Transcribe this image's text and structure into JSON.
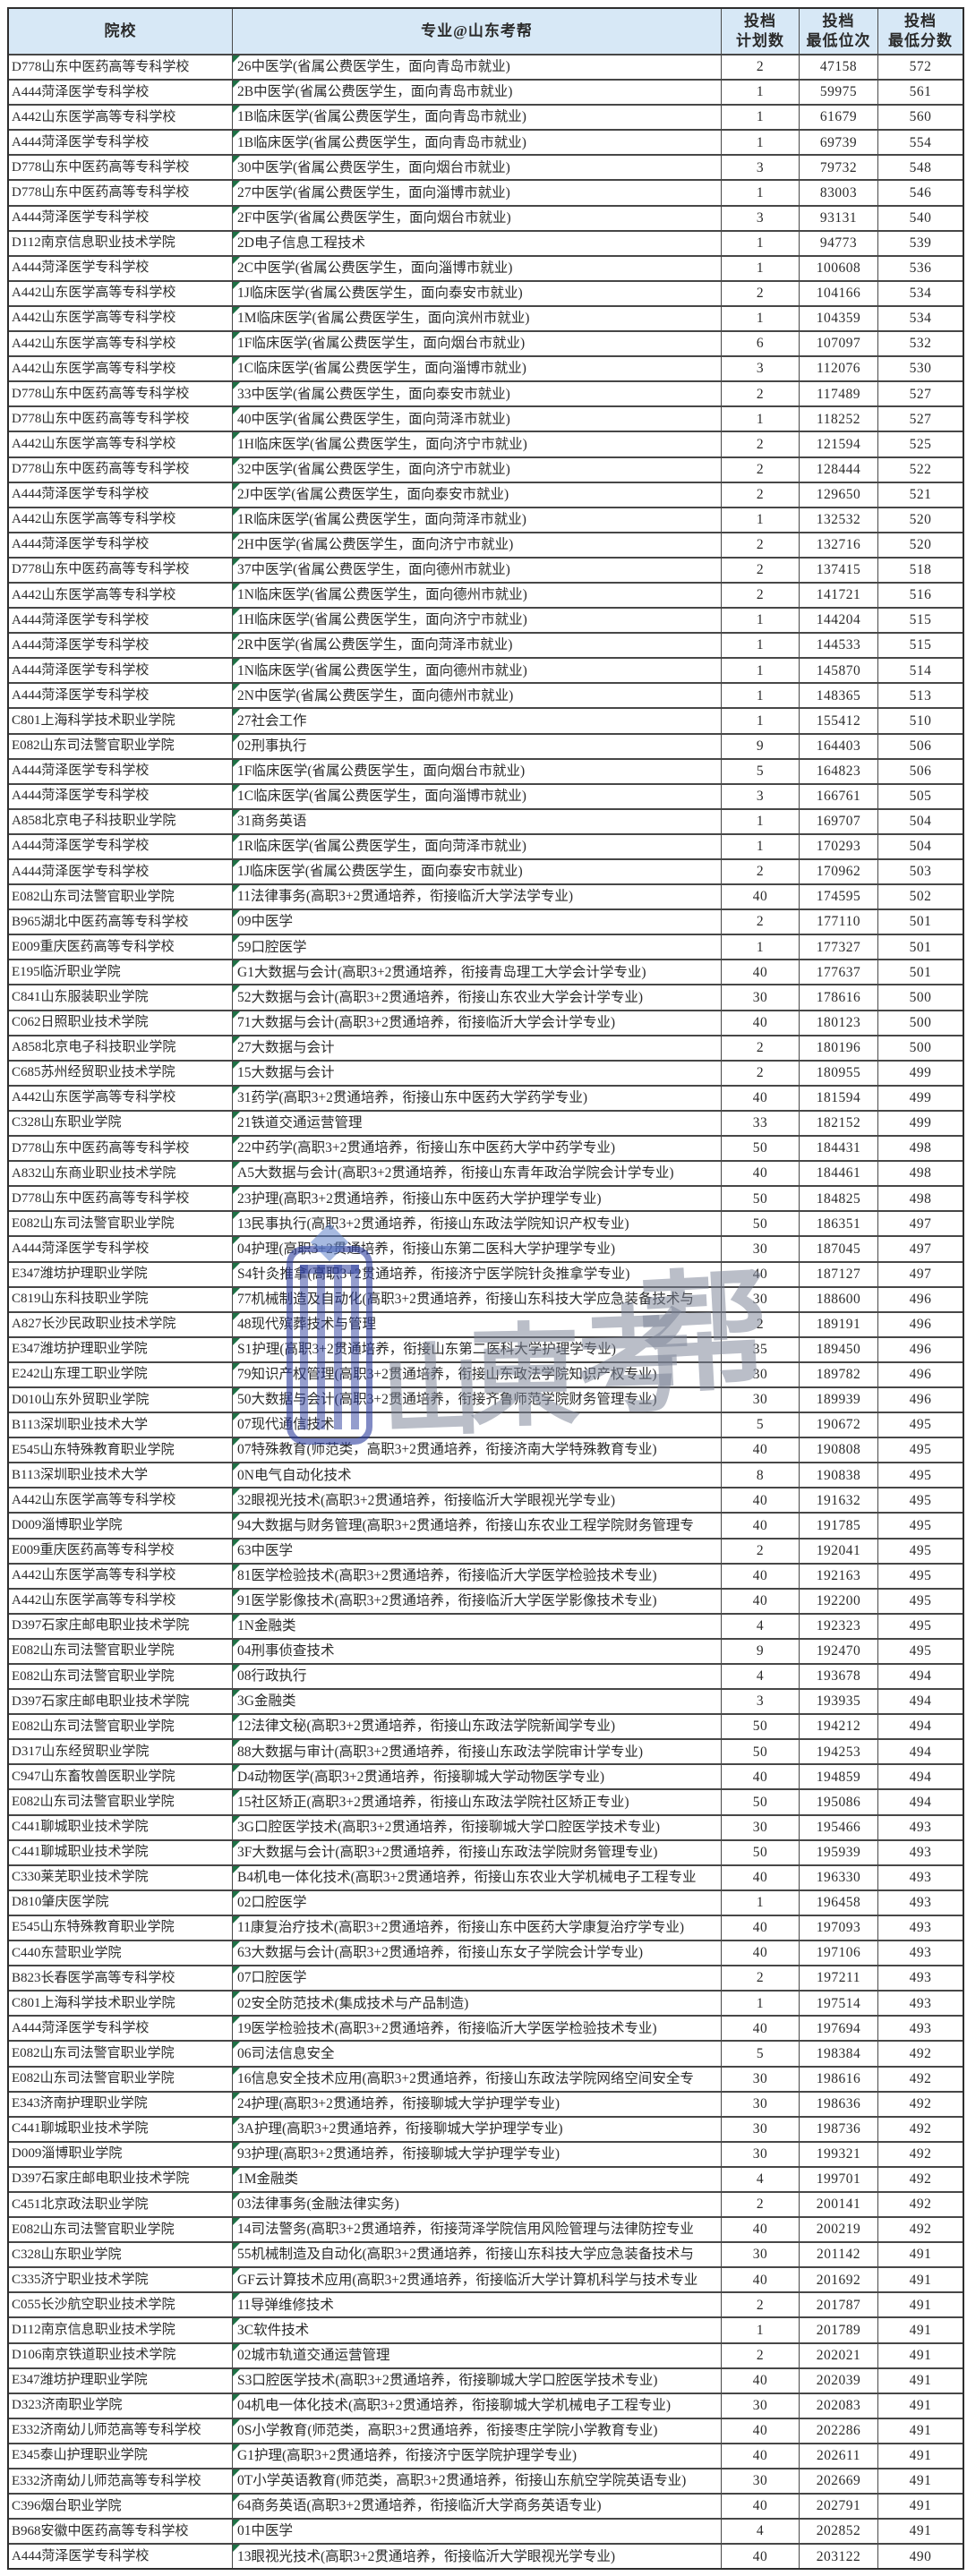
{
  "colors": {
    "header_bg": "#d7e8f6",
    "grid_line": "#474747",
    "outer_border": "#2e2e2e",
    "corner_marker_green": "#1e7145",
    "watermark_blue": "#2b3c9c",
    "watermark_gray": "#7a8396",
    "text": "#2b2b2b"
  },
  "watermark": {
    "brand_chars": [
      "山",
      "東",
      "考",
      "帮"
    ]
  },
  "table": {
    "headers": {
      "school": "院校",
      "major": "专业@山东考帮",
      "plan": [
        "投档",
        "计划数"
      ],
      "rank": [
        "投档",
        "最低位次"
      ],
      "score": [
        "投档",
        "最低分数"
      ]
    },
    "rows": [
      {
        "school": "D778山东中医药高等专科学校",
        "major": "26中医学(省属公费医学生，面向青岛市就业)",
        "plan": 2,
        "rank": 47158,
        "score": 572
      },
      {
        "school": "A444菏泽医学专科学校",
        "major": "2B中医学(省属公费医学生，面向青岛市就业)",
        "plan": 1,
        "rank": 59975,
        "score": 561
      },
      {
        "school": "A442山东医学高等专科学校",
        "major": "1B临床医学(省属公费医学生，面向青岛市就业)",
        "plan": 1,
        "rank": 61679,
        "score": 560
      },
      {
        "school": "A444菏泽医学专科学校",
        "major": "1B临床医学(省属公费医学生，面向青岛市就业)",
        "plan": 1,
        "rank": 69739,
        "score": 554
      },
      {
        "school": "D778山东中医药高等专科学校",
        "major": "30中医学(省属公费医学生，面向烟台市就业)",
        "plan": 3,
        "rank": 79732,
        "score": 548
      },
      {
        "school": "D778山东中医药高等专科学校",
        "major": "27中医学(省属公费医学生，面向淄博市就业)",
        "plan": 1,
        "rank": 83003,
        "score": 546
      },
      {
        "school": "A444菏泽医学专科学校",
        "major": "2F中医学(省属公费医学生，面向烟台市就业)",
        "plan": 3,
        "rank": 93131,
        "score": 540
      },
      {
        "school": "D112南京信息职业技术学院",
        "major": "2D电子信息工程技术",
        "plan": 1,
        "rank": 94773,
        "score": 539
      },
      {
        "school": "A444菏泽医学专科学校",
        "major": "2C中医学(省属公费医学生，面向淄博市就业)",
        "plan": 1,
        "rank": 100608,
        "score": 536
      },
      {
        "school": "A442山东医学高等专科学校",
        "major": "1J临床医学(省属公费医学生，面向泰安市就业)",
        "plan": 2,
        "rank": 104166,
        "score": 534
      },
      {
        "school": "A442山东医学高等专科学校",
        "major": "1M临床医学(省属公费医学生，面向滨州市就业)",
        "plan": 1,
        "rank": 104359,
        "score": 534
      },
      {
        "school": "A442山东医学高等专科学校",
        "major": "1F临床医学(省属公费医学生，面向烟台市就业)",
        "plan": 6,
        "rank": 107097,
        "score": 532
      },
      {
        "school": "A442山东医学高等专科学校",
        "major": "1C临床医学(省属公费医学生，面向淄博市就业)",
        "plan": 3,
        "rank": 112076,
        "score": 530
      },
      {
        "school": "D778山东中医药高等专科学校",
        "major": "33中医学(省属公费医学生，面向泰安市就业)",
        "plan": 2,
        "rank": 117489,
        "score": 527
      },
      {
        "school": "D778山东中医药高等专科学校",
        "major": "40中医学(省属公费医学生，面向菏泽市就业)",
        "plan": 1,
        "rank": 118252,
        "score": 527
      },
      {
        "school": "A442山东医学高等专科学校",
        "major": "1H临床医学(省属公费医学生，面向济宁市就业)",
        "plan": 2,
        "rank": 121594,
        "score": 525
      },
      {
        "school": "D778山东中医药高等专科学校",
        "major": "32中医学(省属公费医学生，面向济宁市就业)",
        "plan": 2,
        "rank": 128444,
        "score": 522
      },
      {
        "school": "A444菏泽医学专科学校",
        "major": "2J中医学(省属公费医学生，面向泰安市就业)",
        "plan": 2,
        "rank": 129650,
        "score": 521
      },
      {
        "school": "A442山东医学高等专科学校",
        "major": "1R临床医学(省属公费医学生，面向菏泽市就业)",
        "plan": 1,
        "rank": 132532,
        "score": 520
      },
      {
        "school": "A444菏泽医学专科学校",
        "major": "2H中医学(省属公费医学生，面向济宁市就业)",
        "plan": 2,
        "rank": 132716,
        "score": 520
      },
      {
        "school": "D778山东中医药高等专科学校",
        "major": "37中医学(省属公费医学生，面向德州市就业)",
        "plan": 2,
        "rank": 137415,
        "score": 518
      },
      {
        "school": "A442山东医学高等专科学校",
        "major": "1N临床医学(省属公费医学生，面向德州市就业)",
        "plan": 2,
        "rank": 141721,
        "score": 516
      },
      {
        "school": "A444菏泽医学专科学校",
        "major": "1H临床医学(省属公费医学生，面向济宁市就业)",
        "plan": 1,
        "rank": 144204,
        "score": 515
      },
      {
        "school": "A444菏泽医学专科学校",
        "major": "2R中医学(省属公费医学生，面向菏泽市就业)",
        "plan": 1,
        "rank": 144533,
        "score": 515
      },
      {
        "school": "A444菏泽医学专科学校",
        "major": "1N临床医学(省属公费医学生，面向德州市就业)",
        "plan": 1,
        "rank": 145870,
        "score": 514
      },
      {
        "school": "A444菏泽医学专科学校",
        "major": "2N中医学(省属公费医学生，面向德州市就业)",
        "plan": 1,
        "rank": 148365,
        "score": 513
      },
      {
        "school": "C801上海科学技术职业学院",
        "major": "27社会工作",
        "plan": 1,
        "rank": 155412,
        "score": 510
      },
      {
        "school": "E082山东司法警官职业学院",
        "major": "02刑事执行",
        "plan": 9,
        "rank": 164403,
        "score": 506
      },
      {
        "school": "A444菏泽医学专科学校",
        "major": "1F临床医学(省属公费医学生，面向烟台市就业)",
        "plan": 5,
        "rank": 164823,
        "score": 506
      },
      {
        "school": "A444菏泽医学专科学校",
        "major": "1C临床医学(省属公费医学生，面向淄博市就业)",
        "plan": 3,
        "rank": 166761,
        "score": 505
      },
      {
        "school": "A858北京电子科技职业学院",
        "major": "31商务英语",
        "plan": 1,
        "rank": 169707,
        "score": 504
      },
      {
        "school": "A444菏泽医学专科学校",
        "major": "1R临床医学(省属公费医学生，面向菏泽市就业)",
        "plan": 1,
        "rank": 170293,
        "score": 504
      },
      {
        "school": "A444菏泽医学专科学校",
        "major": "1J临床医学(省属公费医学生，面向泰安市就业)",
        "plan": 2,
        "rank": 170962,
        "score": 503
      },
      {
        "school": "E082山东司法警官职业学院",
        "major": "11法律事务(高职3+2贯通培养，衔接临沂大学法学专业)",
        "plan": 40,
        "rank": 174595,
        "score": 502
      },
      {
        "school": "B965湖北中医药高等专科学校",
        "major": "09中医学",
        "plan": 2,
        "rank": 177110,
        "score": 501
      },
      {
        "school": "E009重庆医药高等专科学校",
        "major": "59口腔医学",
        "plan": 1,
        "rank": 177327,
        "score": 501
      },
      {
        "school": "E195临沂职业学院",
        "major": "G1大数据与会计(高职3+2贯通培养，衔接青岛理工大学会计学专业)",
        "plan": 40,
        "rank": 177637,
        "score": 501
      },
      {
        "school": "C841山东服装职业学院",
        "major": "52大数据与会计(高职3+2贯通培养，衔接山东农业大学会计学专业)",
        "plan": 30,
        "rank": 178616,
        "score": 500
      },
      {
        "school": "C062日照职业技术学院",
        "major": "71大数据与会计(高职3+2贯通培养，衔接临沂大学会计学专业)",
        "plan": 40,
        "rank": 180123,
        "score": 500
      },
      {
        "school": "A858北京电子科技职业学院",
        "major": "27大数据与会计",
        "plan": 2,
        "rank": 180196,
        "score": 500
      },
      {
        "school": "C685苏州经贸职业技术学院",
        "major": "15大数据与会计",
        "plan": 2,
        "rank": 180955,
        "score": 499
      },
      {
        "school": "A442山东医学高等专科学校",
        "major": "31药学(高职3+2贯通培养，衔接山东中医药大学药学专业)",
        "plan": 40,
        "rank": 181594,
        "score": 499
      },
      {
        "school": "C328山东职业学院",
        "major": "21铁道交通运营管理",
        "plan": 33,
        "rank": 182152,
        "score": 499
      },
      {
        "school": "D778山东中医药高等专科学校",
        "major": "22中药学(高职3+2贯通培养，衔接山东中医药大学中药学专业)",
        "plan": 50,
        "rank": 184431,
        "score": 498
      },
      {
        "school": "A832山东商业职业技术学院",
        "major": "A5大数据与会计(高职3+2贯通培养，衔接山东青年政治学院会计学专业)",
        "plan": 40,
        "rank": 184461,
        "score": 498
      },
      {
        "school": "D778山东中医药高等专科学校",
        "major": "23护理(高职3+2贯通培养，衔接山东中医药大学护理学专业)",
        "plan": 50,
        "rank": 184825,
        "score": 498
      },
      {
        "school": "E082山东司法警官职业学院",
        "major": "13民事执行(高职3+2贯通培养，衔接山东政法学院知识产权专业)",
        "plan": 50,
        "rank": 186351,
        "score": 497
      },
      {
        "school": "A444菏泽医学专科学校",
        "major": "04护理(高职3+2贯通培养，衔接山东第二医科大学护理学专业)",
        "plan": 30,
        "rank": 187045,
        "score": 497
      },
      {
        "school": "E347潍坊护理职业学院",
        "major": "S4针灸推拿(高职3+2贯通培养，衔接济宁医学院针灸推拿学专业)",
        "plan": 40,
        "rank": 187127,
        "score": 497
      },
      {
        "school": "C819山东科技职业学院",
        "major": "77机械制造及自动化(高职3+2贯通培养，衔接山东科技大学应急装备技术与",
        "plan": 30,
        "rank": 188600,
        "score": 496
      },
      {
        "school": "A827长沙民政职业技术学院",
        "major": "48现代殡葬技术与管理",
        "plan": 2,
        "rank": 189191,
        "score": 496
      },
      {
        "school": "E347潍坊护理职业学院",
        "major": "S1护理(高职3+2贯通培养，衔接山东第二医科大学护理学专业)",
        "plan": 35,
        "rank": 189450,
        "score": 496
      },
      {
        "school": "E242山东理工职业学院",
        "major": "79知识产权管理(高职3+2贯通培养，衔接山东政法学院知识产权专业)",
        "plan": 30,
        "rank": 189782,
        "score": 496
      },
      {
        "school": "D010山东外贸职业学院",
        "major": "50大数据与会计(高职3+2贯通培养，衔接齐鲁师范学院财务管理专业)",
        "plan": 30,
        "rank": 189939,
        "score": 496
      },
      {
        "school": "B113深圳职业技术大学",
        "major": "07现代通信技术",
        "plan": 5,
        "rank": 190672,
        "score": 495
      },
      {
        "school": "E545山东特殊教育职业学院",
        "major": "07特殊教育(师范类，高职3+2贯通培养，衔接济南大学特殊教育专业)",
        "plan": 40,
        "rank": 190808,
        "score": 495
      },
      {
        "school": "B113深圳职业技术大学",
        "major": "0N电气自动化技术",
        "plan": 8,
        "rank": 190838,
        "score": 495
      },
      {
        "school": "A442山东医学高等专科学校",
        "major": "32眼视光技术(高职3+2贯通培养，衔接临沂大学眼视光学专业)",
        "plan": 40,
        "rank": 191632,
        "score": 495
      },
      {
        "school": "D009淄博职业学院",
        "major": "94大数据与财务管理(高职3+2贯通培养，衔接山东农业工程学院财务管理专",
        "plan": 40,
        "rank": 191785,
        "score": 495
      },
      {
        "school": "E009重庆医药高等专科学校",
        "major": "63中医学",
        "plan": 2,
        "rank": 192041,
        "score": 495
      },
      {
        "school": "A442山东医学高等专科学校",
        "major": "81医学检验技术(高职3+2贯通培养，衔接临沂大学医学检验技术专业)",
        "plan": 40,
        "rank": 192163,
        "score": 495
      },
      {
        "school": "A442山东医学高等专科学校",
        "major": "91医学影像技术(高职3+2贯通培养，衔接临沂大学医学影像技术专业)",
        "plan": 40,
        "rank": 192200,
        "score": 495
      },
      {
        "school": "D397石家庄邮电职业技术学院",
        "major": "1N金融类",
        "plan": 4,
        "rank": 192323,
        "score": 495
      },
      {
        "school": "E082山东司法警官职业学院",
        "major": "04刑事侦查技术",
        "plan": 9,
        "rank": 192470,
        "score": 495
      },
      {
        "school": "E082山东司法警官职业学院",
        "major": "08行政执行",
        "plan": 4,
        "rank": 193678,
        "score": 494
      },
      {
        "school": "D397石家庄邮电职业技术学院",
        "major": "3G金融类",
        "plan": 3,
        "rank": 193935,
        "score": 494
      },
      {
        "school": "E082山东司法警官职业学院",
        "major": "12法律文秘(高职3+2贯通培养，衔接山东政法学院新闻学专业)",
        "plan": 50,
        "rank": 194212,
        "score": 494
      },
      {
        "school": "D317山东经贸职业学院",
        "major": "88大数据与审计(高职3+2贯通培养，衔接山东政法学院审计学专业)",
        "plan": 50,
        "rank": 194253,
        "score": 494
      },
      {
        "school": "C947山东畜牧兽医职业学院",
        "major": "D4动物医学(高职3+2贯通培养，衔接聊城大学动物医学专业)",
        "plan": 40,
        "rank": 194859,
        "score": 494
      },
      {
        "school": "E082山东司法警官职业学院",
        "major": "15社区矫正(高职3+2贯通培养，衔接山东政法学院社区矫正专业)",
        "plan": 50,
        "rank": 195086,
        "score": 494
      },
      {
        "school": "C441聊城职业技术学院",
        "major": "3G口腔医学技术(高职3+2贯通培养，衔接聊城大学口腔医学技术专业)",
        "plan": 30,
        "rank": 195466,
        "score": 493
      },
      {
        "school": "C441聊城职业技术学院",
        "major": "3F大数据与会计(高职3+2贯通培养，衔接山东政法学院财务管理专业)",
        "plan": 50,
        "rank": 195939,
        "score": 493
      },
      {
        "school": "C330莱芜职业技术学院",
        "major": "B4机电一体化技术(高职3+2贯通培养，衔接山东农业大学机械电子工程专业",
        "plan": 40,
        "rank": 196330,
        "score": 493
      },
      {
        "school": "D810肇庆医学院",
        "major": "02口腔医学",
        "plan": 1,
        "rank": 196458,
        "score": 493
      },
      {
        "school": "E545山东特殊教育职业学院",
        "major": "11康复治疗技术(高职3+2贯通培养，衔接山东中医药大学康复治疗学专业)",
        "plan": 40,
        "rank": 197093,
        "score": 493
      },
      {
        "school": "C440东营职业学院",
        "major": "63大数据与会计(高职3+2贯通培养，衔接山东女子学院会计学专业)",
        "plan": 40,
        "rank": 197106,
        "score": 493
      },
      {
        "school": "B823长春医学高等专科学校",
        "major": "07口腔医学",
        "plan": 2,
        "rank": 197211,
        "score": 493
      },
      {
        "school": "C801上海科学技术职业学院",
        "major": "02安全防范技术(集成技术与产品制造)",
        "plan": 1,
        "rank": 197514,
        "score": 493
      },
      {
        "school": "A444菏泽医学专科学校",
        "major": "19医学检验技术(高职3+2贯通培养，衔接临沂大学医学检验技术专业)",
        "plan": 40,
        "rank": 197694,
        "score": 493
      },
      {
        "school": "E082山东司法警官职业学院",
        "major": "06司法信息安全",
        "plan": 5,
        "rank": 198384,
        "score": 492
      },
      {
        "school": "E082山东司法警官职业学院",
        "major": "16信息安全技术应用(高职3+2贯通培养，衔接山东政法学院网络空间安全专",
        "plan": 30,
        "rank": 198616,
        "score": 492
      },
      {
        "school": "E343济南护理职业学院",
        "major": "24护理(高职3+2贯通培养，衔接聊城大学护理学专业)",
        "plan": 30,
        "rank": 198636,
        "score": 492
      },
      {
        "school": "C441聊城职业技术学院",
        "major": "3A护理(高职3+2贯通培养，衔接聊城大学护理学专业)",
        "plan": 30,
        "rank": 198736,
        "score": 492
      },
      {
        "school": "D009淄博职业学院",
        "major": "93护理(高职3+2贯通培养，衔接聊城大学护理学专业)",
        "plan": 30,
        "rank": 199321,
        "score": 492
      },
      {
        "school": "D397石家庄邮电职业技术学院",
        "major": "1M金融类",
        "plan": 4,
        "rank": 199701,
        "score": 492
      },
      {
        "school": "C451北京政法职业学院",
        "major": "03法律事务(金融法律实务)",
        "plan": 2,
        "rank": 200141,
        "score": 492
      },
      {
        "school": "E082山东司法警官职业学院",
        "major": "14司法警务(高职3+2贯通培养，衔接菏泽学院信用风险管理与法律防控专业",
        "plan": 40,
        "rank": 200219,
        "score": 492
      },
      {
        "school": "C328山东职业学院",
        "major": "55机械制造及自动化(高职3+2贯通培养，衔接山东科技大学应急装备技术与",
        "plan": 30,
        "rank": 201142,
        "score": 491
      },
      {
        "school": "C335济宁职业技术学院",
        "major": "GF云计算技术应用(高职3+2贯通培养，衔接临沂大学计算机科学与技术专业",
        "plan": 40,
        "rank": 201692,
        "score": 491
      },
      {
        "school": "C055长沙航空职业技术学院",
        "major": "11导弹维修技术",
        "plan": 2,
        "rank": 201787,
        "score": 491
      },
      {
        "school": "D112南京信息职业技术学院",
        "major": "3C软件技术",
        "plan": 1,
        "rank": 201789,
        "score": 491
      },
      {
        "school": "D106南京铁道职业技术学院",
        "major": "02城市轨道交通运营管理",
        "plan": 2,
        "rank": 202021,
        "score": 491
      },
      {
        "school": "E347潍坊护理职业学院",
        "major": "S3口腔医学技术(高职3+2贯通培养，衔接聊城大学口腔医学技术专业)",
        "plan": 40,
        "rank": 202039,
        "score": 491
      },
      {
        "school": "D323济南职业学院",
        "major": "04机电一体化技术(高职3+2贯通培养，衔接聊城大学机械电子工程专业)",
        "plan": 30,
        "rank": 202083,
        "score": 491
      },
      {
        "school": "E332济南幼儿师范高等专科学校",
        "major": "0S小学教育(师范类，高职3+2贯通培养，衔接枣庄学院小学教育专业)",
        "plan": 40,
        "rank": 202286,
        "score": 491
      },
      {
        "school": "E345泰山护理职业学院",
        "major": "G1护理(高职3+2贯通培养，衔接济宁医学院护理学专业)",
        "plan": 40,
        "rank": 202611,
        "score": 491
      },
      {
        "school": "E332济南幼儿师范高等专科学校",
        "major": "0T小学英语教育(师范类，高职3+2贯通培养，衔接山东航空学院英语专业)",
        "plan": 30,
        "rank": 202669,
        "score": 491
      },
      {
        "school": "C396烟台职业学院",
        "major": "64商务英语(高职3+2贯通培养，衔接临沂大学商务英语专业)",
        "plan": 40,
        "rank": 202791,
        "score": 491
      },
      {
        "school": "B968安徽中医药高等专科学校",
        "major": "01中医学",
        "plan": 4,
        "rank": 202852,
        "score": 491
      },
      {
        "school": "A444菏泽医学专科学校",
        "major": "13眼视光技术(高职3+2贯通培养，衔接临沂大学眼视光学专业)",
        "plan": 40,
        "rank": 203122,
        "score": 490
      }
    ]
  }
}
